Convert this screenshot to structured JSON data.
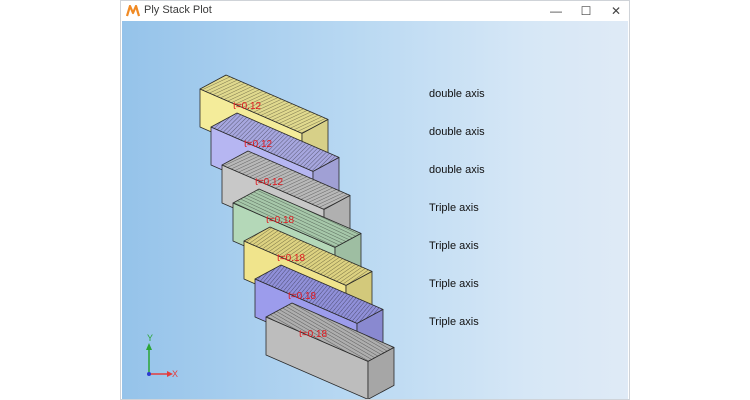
{
  "window": {
    "title": "Ply Stack Plot",
    "min_symbol": "—",
    "max_symbol": "☐",
    "close_symbol": "✕"
  },
  "plies": [
    {
      "thickness_label": "t=0.12",
      "description": "double axis",
      "color": "#f4ec9a"
    },
    {
      "thickness_label": "t=0.12",
      "description": "double axis",
      "color": "#b6b6f2"
    },
    {
      "thickness_label": "t=0.12",
      "description": "double axis",
      "color": "#c8c8c8"
    },
    {
      "thickness_label": "t=0.18",
      "description": "Triple axis",
      "color": "#b4d8b8"
    },
    {
      "thickness_label": "t=0.18",
      "description": "Triple axis",
      "color": "#f0e48c"
    },
    {
      "thickness_label": "t=0.18",
      "description": "Triple axis",
      "color": "#9c9cec"
    },
    {
      "thickness_label": "t=0.18",
      "description": "Triple axis",
      "color": "#bdbdbd"
    }
  ],
  "triad": {
    "x_label": "X",
    "y_label": "Y",
    "x_color": "#e33c3c",
    "y_color": "#2aa534",
    "z_color": "#2b3bd1"
  },
  "icons": {
    "app": "ply-app-icon"
  }
}
